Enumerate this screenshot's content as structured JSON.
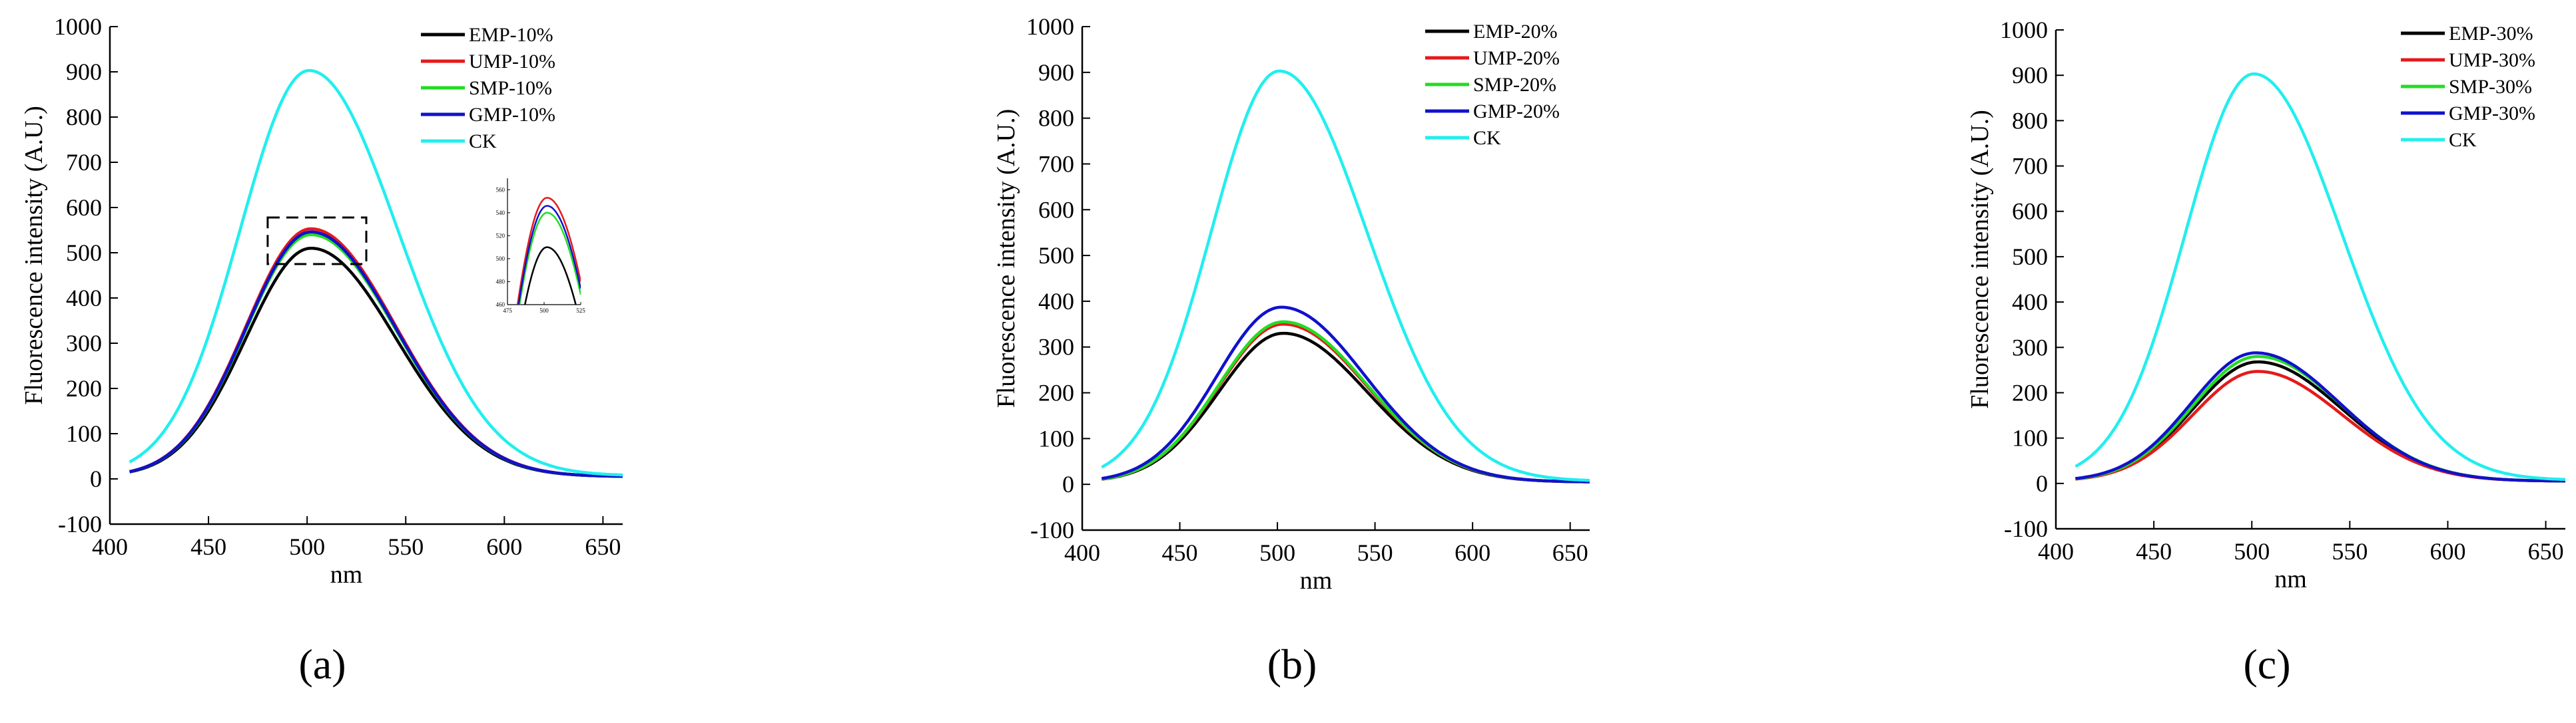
{
  "colors": {
    "EMP": "#000000",
    "UMP": "#e41a1c",
    "SMP": "#22dd22",
    "GMP": "#1111cc",
    "CK": "#22eeee"
  },
  "chart_data": [
    {
      "type": "line",
      "panel_label": "(a)",
      "title": "",
      "xlabel": "nm",
      "ylabel": "Fluorescence intensity (A.U.)",
      "xlim": [
        400,
        660
      ],
      "ylim": [
        -100,
        1000
      ],
      "xticks": [
        "400",
        "450",
        "500",
        "550",
        "600",
        "650"
      ],
      "yticks": [
        "-100",
        "0",
        "100",
        "200",
        "300",
        "400",
        "500",
        "600",
        "700",
        "800",
        "900",
        "1000"
      ],
      "legend_position": "top-right",
      "series": [
        {
          "name": "EMP-10%",
          "key": "EMP",
          "peak": 510,
          "center": 502,
          "sigma_left": 33,
          "sigma_right": 43,
          "baseline": 5
        },
        {
          "name": "UMP-10%",
          "key": "UMP",
          "peak": 553,
          "center": 502,
          "sigma_left": 33,
          "sigma_right": 43,
          "baseline": 5
        },
        {
          "name": "SMP-10%",
          "key": "SMP",
          "peak": 540,
          "center": 502,
          "sigma_left": 33,
          "sigma_right": 43,
          "baseline": 5
        },
        {
          "name": "GMP-10%",
          "key": "GMP",
          "peak": 546,
          "center": 502,
          "sigma_left": 33,
          "sigma_right": 43,
          "baseline": 5
        },
        {
          "name": "CK",
          "key": "CK",
          "peak": 903,
          "center": 501,
          "sigma_left": 35,
          "sigma_right": 45,
          "baseline": 7
        }
      ],
      "inset": {
        "xlim": [
          475,
          525
        ],
        "ylim": [
          460,
          570
        ],
        "xticks": [
          "475",
          "500",
          "525"
        ],
        "yticks": [
          "460",
          "480",
          "500",
          "520",
          "540",
          "560"
        ]
      }
    },
    {
      "type": "line",
      "panel_label": "(b)",
      "title": "",
      "xlabel": "nm",
      "ylabel": "Fluorescence intensity (A.U.)",
      "xlim": [
        400,
        660
      ],
      "ylim": [
        -100,
        1000
      ],
      "xticks": [
        "400",
        "450",
        "500",
        "550",
        "600",
        "650"
      ],
      "yticks": [
        "-100",
        "0",
        "100",
        "200",
        "300",
        "400",
        "500",
        "600",
        "700",
        "800",
        "900",
        "1000"
      ],
      "legend_position": "top-right",
      "series": [
        {
          "name": "EMP-20%",
          "key": "EMP",
          "peak": 330,
          "center": 503,
          "sigma_left": 33,
          "sigma_right": 43,
          "baseline": 5
        },
        {
          "name": "UMP-20%",
          "key": "UMP",
          "peak": 350,
          "center": 503,
          "sigma_left": 33,
          "sigma_right": 43,
          "baseline": 5
        },
        {
          "name": "SMP-20%",
          "key": "SMP",
          "peak": 355,
          "center": 503,
          "sigma_left": 33,
          "sigma_right": 43,
          "baseline": 5
        },
        {
          "name": "GMP-20%",
          "key": "GMP",
          "peak": 387,
          "center": 502,
          "sigma_left": 33,
          "sigma_right": 43,
          "baseline": 5
        },
        {
          "name": "CK",
          "key": "CK",
          "peak": 903,
          "center": 501,
          "sigma_left": 35,
          "sigma_right": 45,
          "baseline": 7
        }
      ]
    },
    {
      "type": "line",
      "panel_label": "(c)",
      "title": "",
      "xlabel": "nm",
      "ylabel": "Fluorescence intensity (A.U.)",
      "xlim": [
        400,
        660
      ],
      "ylim": [
        -100,
        1000
      ],
      "xticks": [
        "400",
        "450",
        "500",
        "550",
        "600",
        "650"
      ],
      "yticks": [
        "-100",
        "0",
        "100",
        "200",
        "300",
        "400",
        "500",
        "600",
        "700",
        "800",
        "900",
        "1000"
      ],
      "legend_position": "top-right",
      "series": [
        {
          "name": "EMP-30%",
          "key": "EMP",
          "peak": 268,
          "center": 503,
          "sigma_left": 33,
          "sigma_right": 43,
          "baseline": 5
        },
        {
          "name": "UMP-30%",
          "key": "UMP",
          "peak": 247,
          "center": 503,
          "sigma_left": 33,
          "sigma_right": 43,
          "baseline": 5
        },
        {
          "name": "SMP-30%",
          "key": "SMP",
          "peak": 280,
          "center": 503,
          "sigma_left": 33,
          "sigma_right": 43,
          "baseline": 5
        },
        {
          "name": "GMP-30%",
          "key": "GMP",
          "peak": 288,
          "center": 502,
          "sigma_left": 33,
          "sigma_right": 43,
          "baseline": 5
        },
        {
          "name": "CK",
          "key": "CK",
          "peak": 903,
          "center": 501,
          "sigma_left": 35,
          "sigma_right": 45,
          "baseline": 7
        }
      ]
    }
  ]
}
